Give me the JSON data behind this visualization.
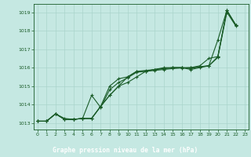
{
  "title": "Graphe pression niveau de la mer (hPa)",
  "bg_color": "#c5e8e2",
  "grid_color": "#aad4cc",
  "line_color": "#1a5c28",
  "title_bg": "#2a6e3a",
  "title_fg": "#ffffff",
  "ylim": [
    1012.65,
    1019.45
  ],
  "xlim": [
    -0.4,
    23.4
  ],
  "yticks": [
    1013,
    1014,
    1015,
    1016,
    1017,
    1018,
    1019
  ],
  "xticks": [
    0,
    1,
    2,
    3,
    4,
    5,
    6,
    7,
    8,
    9,
    10,
    11,
    12,
    13,
    14,
    15,
    16,
    17,
    18,
    19,
    20,
    21,
    22,
    23
  ],
  "series": [
    {
      "x": [
        0,
        1,
        2,
        3,
        4,
        5,
        6,
        7,
        8,
        9,
        10,
        11,
        12,
        13,
        14,
        15,
        16,
        17,
        18,
        19,
        20,
        21,
        22
      ],
      "y": [
        1013.1,
        1013.1,
        1013.5,
        1013.2,
        1013.2,
        1013.25,
        1013.25,
        1013.9,
        1015.0,
        1015.4,
        1015.5,
        1015.8,
        1015.85,
        1015.9,
        1015.95,
        1016.0,
        1016.0,
        1015.95,
        1016.05,
        1016.1,
        1016.6,
        1019.1,
        1018.3
      ]
    },
    {
      "x": [
        0,
        1,
        2,
        3,
        4,
        5,
        6,
        7,
        8,
        9,
        10,
        11,
        12,
        13,
        14,
        15,
        16,
        17,
        18,
        19,
        20,
        21,
        22
      ],
      "y": [
        1013.1,
        1013.1,
        1013.5,
        1013.2,
        1013.2,
        1013.25,
        1014.5,
        1013.85,
        1014.8,
        1015.2,
        1015.45,
        1015.75,
        1015.8,
        1015.85,
        1015.9,
        1015.95,
        1015.98,
        1016.0,
        1016.05,
        1016.1,
        1016.55,
        1019.0,
        1018.25
      ]
    },
    {
      "x": [
        0,
        1,
        2,
        3,
        4,
        5,
        6,
        7,
        8,
        9,
        10,
        11,
        12,
        13,
        14,
        15,
        16,
        17,
        18,
        19,
        20,
        21,
        22
      ],
      "y": [
        1013.1,
        1013.1,
        1013.5,
        1013.2,
        1013.2,
        1013.25,
        1013.25,
        1013.9,
        1014.5,
        1015.0,
        1015.2,
        1015.5,
        1015.8,
        1015.9,
        1015.95,
        1016.0,
        1016.0,
        1016.0,
        1016.1,
        1016.5,
        1016.6,
        1019.1,
        1018.3
      ]
    },
    {
      "x": [
        0,
        1,
        2,
        3,
        4,
        5,
        6,
        7,
        8,
        9,
        10,
        11,
        12,
        13,
        14,
        15,
        16,
        17,
        18,
        19,
        20,
        21,
        22
      ],
      "y": [
        1013.1,
        1013.1,
        1013.5,
        1013.25,
        1013.2,
        1013.25,
        1013.25,
        1013.9,
        1014.5,
        1015.0,
        1015.5,
        1015.8,
        1015.8,
        1015.9,
        1016.0,
        1016.0,
        1016.0,
        1015.9,
        1016.0,
        1016.1,
        1017.5,
        1019.1,
        1018.3
      ]
    }
  ]
}
